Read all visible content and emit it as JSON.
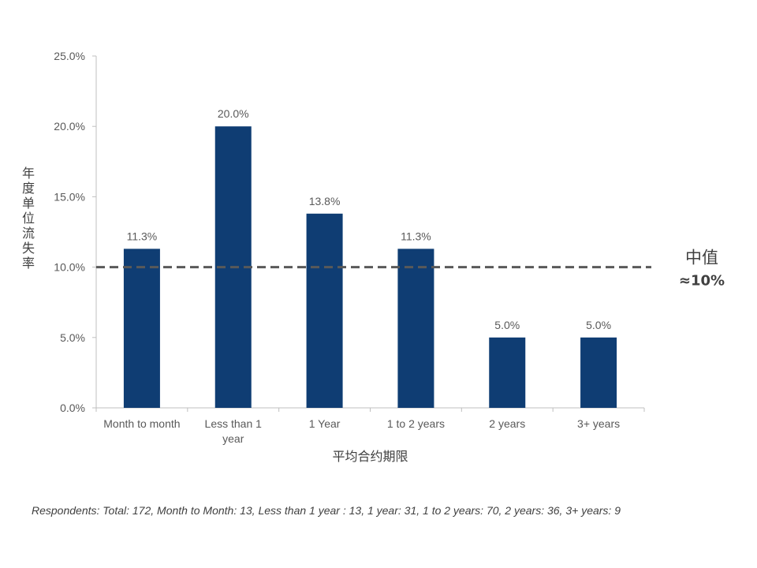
{
  "chart_data": {
    "type": "bar",
    "categories": [
      "Month to month",
      "Less than 1 year",
      "1 Year",
      "1 to 2 years",
      "2 years",
      "3+ years"
    ],
    "category_lines": [
      [
        "Month to month"
      ],
      [
        "Less than 1",
        "year"
      ],
      [
        "1 Year"
      ],
      [
        "1 to 2 years"
      ],
      [
        "2 years"
      ],
      [
        "3+ years"
      ]
    ],
    "values": [
      11.3,
      20.0,
      13.8,
      11.3,
      5.0,
      5.0
    ],
    "data_labels": [
      "11.3%",
      "20.0%",
      "13.8%",
      "11.3%",
      "5.0%",
      "5.0%"
    ],
    "yticks": [
      0,
      5,
      10,
      15,
      20,
      25
    ],
    "ytick_labels": [
      "0.0%",
      "5.0%",
      "10.0%",
      "15.0%",
      "20.0%",
      "25.0%"
    ],
    "ylim": [
      0,
      25
    ],
    "xlabel": "平均合约期限",
    "ylabel": "年度单位流失率",
    "bar_color": "#0f3d73",
    "grid": false,
    "reference_line": {
      "value": 10,
      "style": "dashed",
      "label": "中值",
      "value_label": "≈10%",
      "color": "#595959"
    }
  },
  "footnote": "Respondents: Total: 172, Month to Month: 13, Less than 1 year : 13, 1 year: 31, 1 to 2 years: 70, 2 years: 36, 3+ years: 9"
}
